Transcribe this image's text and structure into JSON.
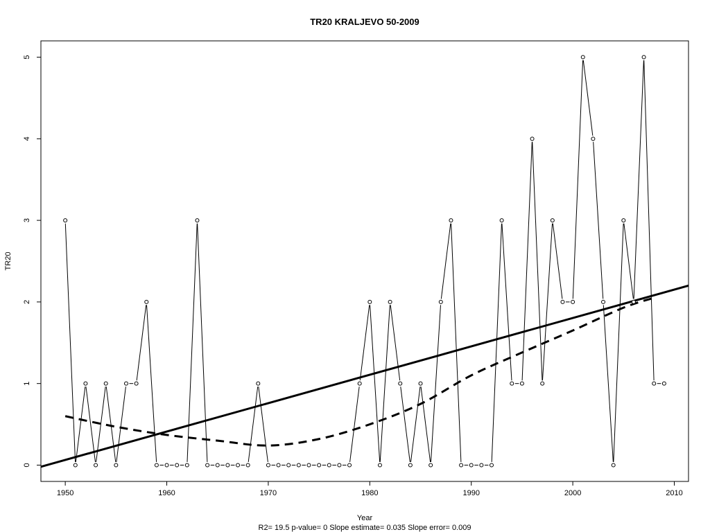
{
  "chart_data": {
    "type": "line",
    "title": "TR20   KRALJEVO 50-2009",
    "xlabel": "Year",
    "ylabel": "TR20",
    "subtitle": "R2= 19.5  p-value= 0  Slope estimate= 0.035  Slope error= 0.009",
    "xlim": [
      1947.6,
      2011.4
    ],
    "ylim": [
      -0.2,
      5.2
    ],
    "x_ticks": [
      1950,
      1960,
      1970,
      1980,
      1990,
      2000,
      2010
    ],
    "y_ticks": [
      0,
      1,
      2,
      3,
      4,
      5
    ],
    "grid": false,
    "legend": "none",
    "series": [
      {
        "style": "line-with-open-points",
        "x": [
          1950,
          1951,
          1952,
          1953,
          1954,
          1955,
          1956,
          1957,
          1958,
          1959,
          1960,
          1961,
          1962,
          1963,
          1964,
          1965,
          1966,
          1967,
          1968,
          1969,
          1970,
          1971,
          1972,
          1973,
          1974,
          1975,
          1976,
          1977,
          1978,
          1979,
          1980,
          1981,
          1982,
          1983,
          1984,
          1985,
          1986,
          1987,
          1988,
          1989,
          1990,
          1991,
          1992,
          1993,
          1994,
          1995,
          1996,
          1997,
          1998,
          1999,
          2000,
          2001,
          2002,
          2003,
          2004,
          2005,
          2006,
          2007,
          2008,
          2009
        ],
        "values": [
          3,
          0,
          1,
          0,
          1,
          0,
          1,
          1,
          2,
          0,
          0,
          0,
          0,
          3,
          0,
          0,
          0,
          0,
          0,
          1,
          0,
          0,
          0,
          0,
          0,
          0,
          0,
          0,
          0,
          1,
          2,
          0,
          2,
          1,
          0,
          1,
          0,
          2,
          3,
          0,
          0,
          0,
          0,
          3,
          1,
          1,
          4,
          1,
          3,
          2,
          2,
          5,
          4,
          2,
          0,
          3,
          2,
          5,
          1,
          1
        ]
      },
      {
        "style": "trend-line",
        "x": [
          1947.6,
          2011.4
        ],
        "values": [
          -0.02,
          2.2
        ]
      },
      {
        "style": "dashed-smooth",
        "x": [
          1950,
          1955,
          1960,
          1965,
          1970,
          1975,
          1980,
          1985,
          1990,
          1995,
          2000,
          2005,
          2008
        ],
        "values": [
          0.6,
          0.47,
          0.37,
          0.3,
          0.24,
          0.32,
          0.5,
          0.75,
          1.1,
          1.38,
          1.65,
          1.93,
          2.05
        ]
      }
    ]
  }
}
